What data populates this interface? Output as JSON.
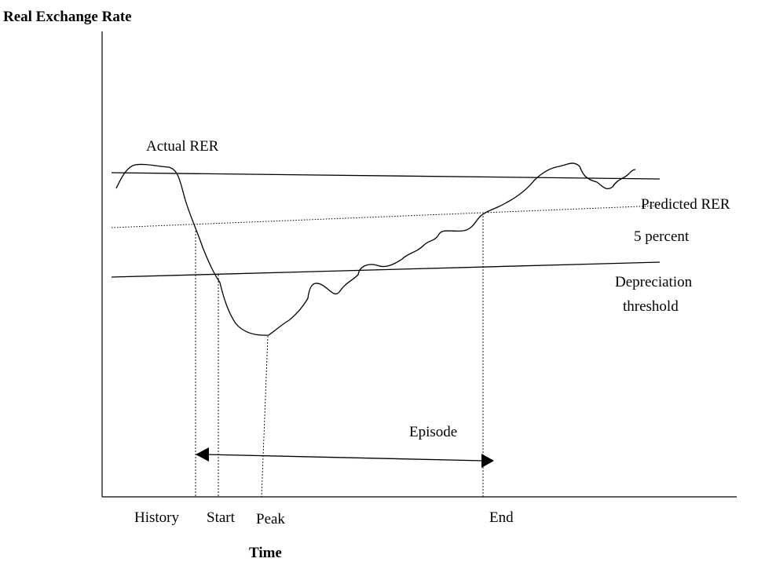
{
  "axes": {
    "y_label": "Real Exchange Rate",
    "x_label": "Time"
  },
  "curves": {
    "actual": "Actual RER",
    "predicted": "Predicted RER",
    "band": "5 percent",
    "threshold": [
      "Depreciation",
      "threshold"
    ]
  },
  "episode": "Episode",
  "markers": [
    "History",
    "Start",
    "Peak",
    "End"
  ]
}
